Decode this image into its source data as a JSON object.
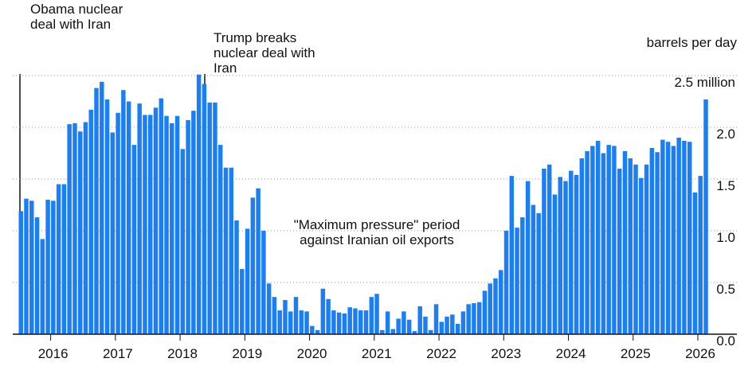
{
  "chart_data": {
    "type": "bar",
    "y_label": "barrels per day",
    "annotations": [
      "Obama nuclear deal with Iran",
      "Trump breaks nuclear deal with Iran",
      "\"Maximum pressure\" period against Iranian oil exports"
    ],
    "color": "#1b7ef5",
    "ylim": [
      0,
      2.5
    ],
    "yticks": [
      {
        "value": 0,
        "label": "0.0"
      },
      {
        "value": 0.5,
        "label": "0.5"
      },
      {
        "value": 1,
        "label": "1.0"
      },
      {
        "value": 1.5,
        "label": "1.5"
      },
      {
        "value": 2,
        "label": "2.0"
      },
      {
        "value": 2.5,
        "label": "2.5 million"
      }
    ],
    "grid": true,
    "categories": [
      null,
      null,
      null,
      null,
      null,
      null,
      "2016",
      null,
      null,
      null,
      null,
      null,
      null,
      null,
      null,
      null,
      null,
      null,
      "2017",
      null,
      null,
      null,
      null,
      null,
      null,
      null,
      null,
      null,
      null,
      null,
      "2018",
      null,
      null,
      null,
      null,
      null,
      null,
      null,
      null,
      null,
      null,
      null,
      "2019",
      null,
      null,
      null,
      null,
      null,
      null,
      null,
      null,
      null,
      null,
      null,
      "2020",
      null,
      null,
      null,
      null,
      null,
      null,
      null,
      null,
      null,
      null,
      null,
      "2021",
      null,
      null,
      null,
      null,
      null,
      null,
      null,
      null,
      null,
      null,
      null,
      "2022",
      null,
      null,
      null,
      null,
      null,
      null,
      null,
      null,
      null,
      null,
      null,
      "2023",
      null,
      null,
      null,
      null,
      null,
      null,
      null,
      null,
      null,
      null,
      null,
      "2024",
      null,
      null,
      null,
      null,
      null,
      null,
      null,
      null,
      null,
      null,
      null,
      "2025",
      null,
      null,
      null,
      null,
      null,
      null,
      null,
      null,
      null,
      null,
      null,
      "2026",
      null
    ],
    "values": [
      1.19,
      1.31,
      1.29,
      1.13,
      0.92,
      1.3,
      1.29,
      1.45,
      1.45,
      2.03,
      2.04,
      1.96,
      2.05,
      2.17,
      2.38,
      2.44,
      2.27,
      1.95,
      2.14,
      2.36,
      2.25,
      1.83,
      2.23,
      2.12,
      2.12,
      2.19,
      2.28,
      2.11,
      2.04,
      2.11,
      1.79,
      2.07,
      2.16,
      2.51,
      2.42,
      2.24,
      2.24,
      1.83,
      1.61,
      1.61,
      1.1,
      0.63,
      1.02,
      1.32,
      1.41,
      1.0,
      0.49,
      0.36,
      0.23,
      0.33,
      0.22,
      0.36,
      0.23,
      0.22,
      0.08,
      0.04,
      0.44,
      0.34,
      0.23,
      0.21,
      0.2,
      0.26,
      0.25,
      0.23,
      0.23,
      0.36,
      0.39,
      0.04,
      0.22,
      0.05,
      0.15,
      0.22,
      0.14,
      0.03,
      0.27,
      0.17,
      0.04,
      0.29,
      0.12,
      0.17,
      0.19,
      0.1,
      0.22,
      0.29,
      0.3,
      0.31,
      0.42,
      0.49,
      0.54,
      0.62,
      1.0,
      1.53,
      1.03,
      1.13,
      1.48,
      1.25,
      1.17,
      1.6,
      1.64,
      1.35,
      1.52,
      1.48,
      1.58,
      1.54,
      1.7,
      1.77,
      1.82,
      1.87,
      1.75,
      1.83,
      1.82,
      1.6,
      1.77,
      1.7,
      1.64,
      1.51,
      1.64,
      1.8,
      1.76,
      1.88,
      1.86,
      1.82,
      1.9,
      1.87,
      1.86,
      1.37,
      1.53,
      2.27
    ]
  }
}
